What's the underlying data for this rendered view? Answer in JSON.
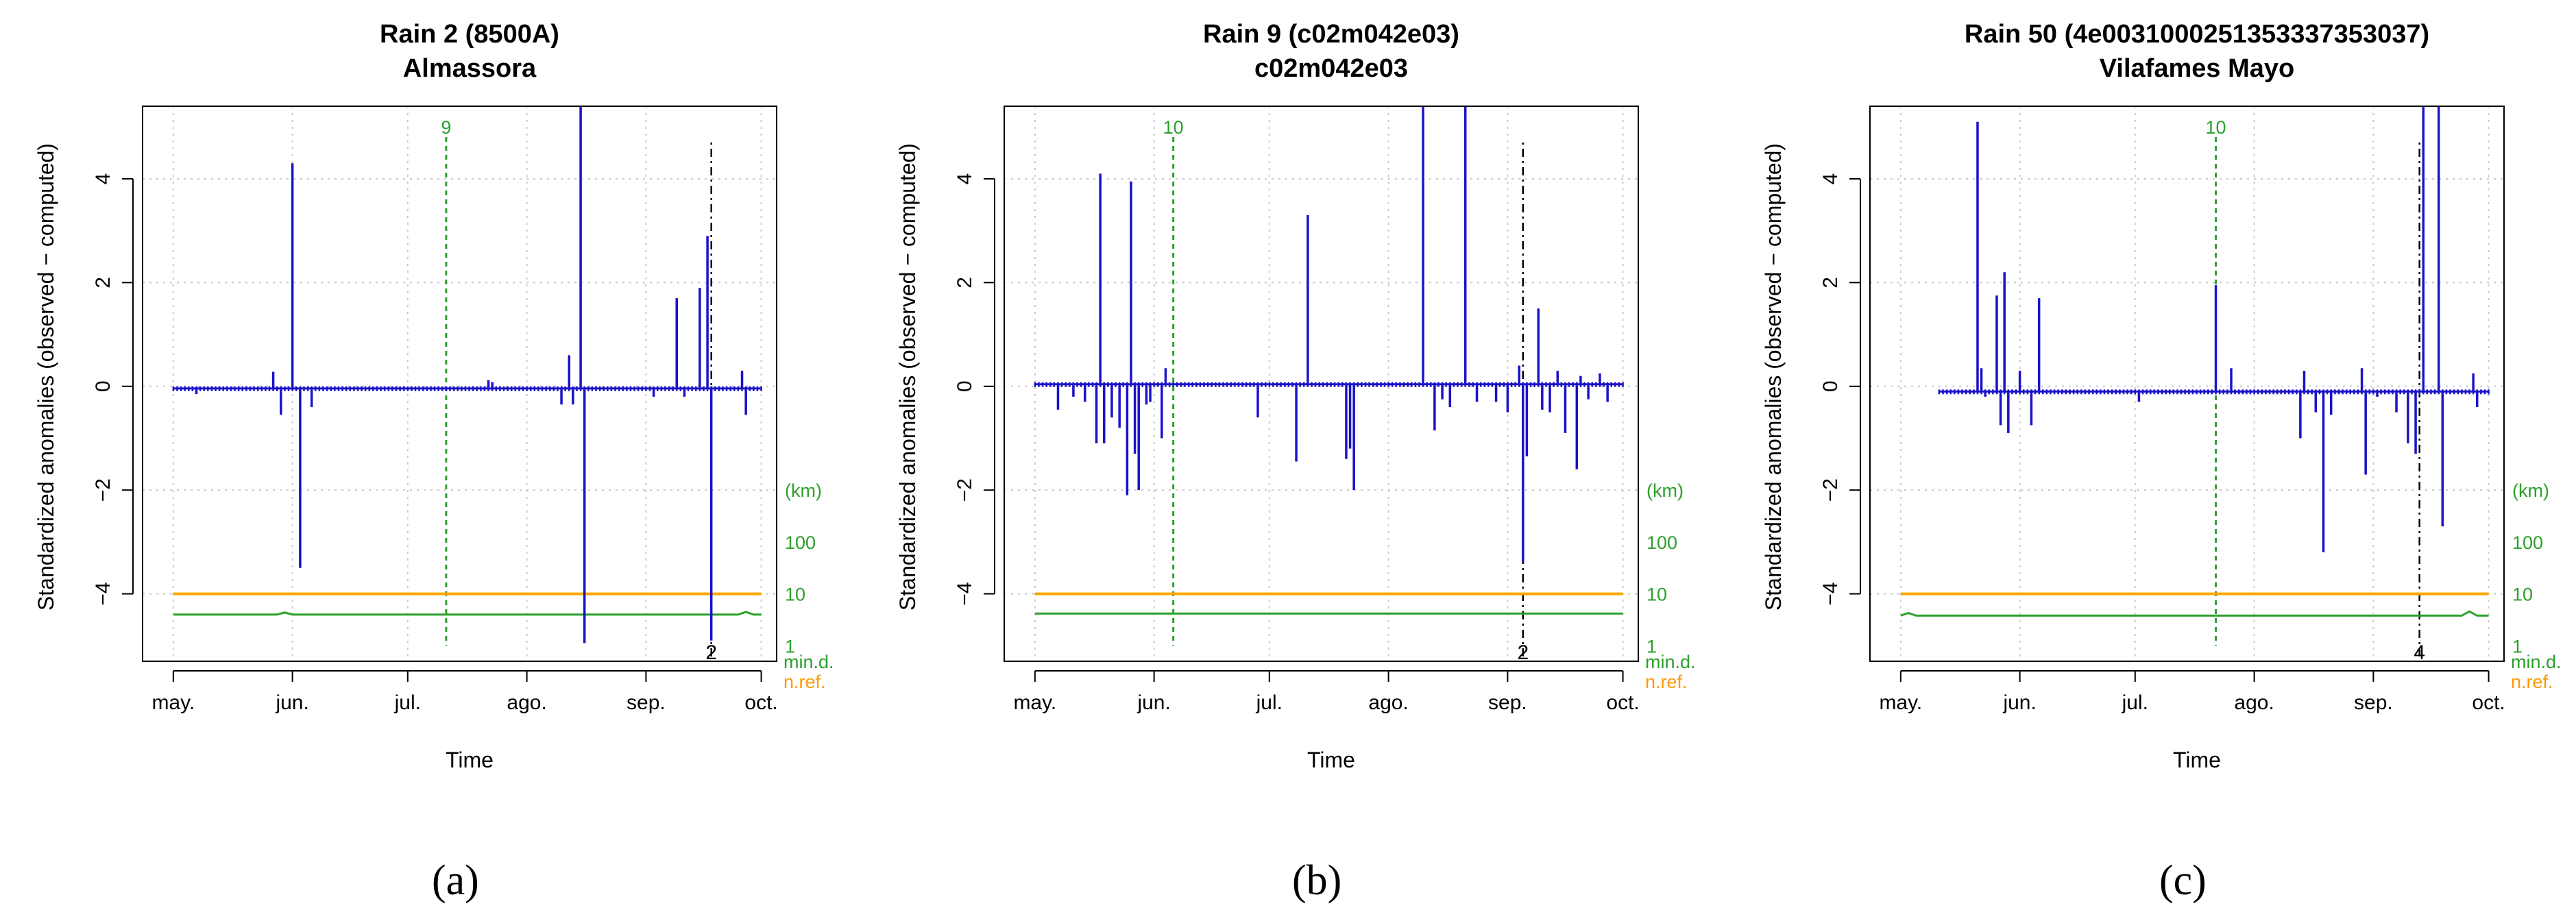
{
  "figure": {
    "captions": [
      "(a)",
      "(b)",
      "(c)"
    ]
  },
  "colors": {
    "anomaly": "#1a12c8",
    "nref": "#ffa500",
    "mind": "#2ca02c",
    "break": "#2ca02c",
    "outlier": "#000000",
    "grid": "#c8c8c8"
  },
  "chart_data": [
    {
      "type": "bar",
      "title": "Rain   2 (8500A)",
      "subtitle": "Almassora",
      "xlabel": "Time",
      "ylabel": "Standardized anomalies (observed − computed)",
      "x_unit": "days since 1 May",
      "xlim": [
        -8,
        157
      ],
      "ylim": [
        -5.3,
        5.4
      ],
      "x_ticks": [
        {
          "label": "may.",
          "x": 0
        },
        {
          "label": "jun.",
          "x": 31
        },
        {
          "label": "jul.",
          "x": 61
        },
        {
          "label": "ago.",
          "x": 92
        },
        {
          "label": "sep.",
          "x": 123
        },
        {
          "label": "oct.",
          "x": 153
        }
      ],
      "y_ticks": [
        -4,
        -2,
        0,
        2,
        4
      ],
      "right_axis": {
        "labels": [
          "(km)",
          "100",
          "10",
          "1"
        ],
        "label_y": [
          -2.0,
          -3.0,
          -4.0,
          -5.0
        ],
        "min_label": "min.d.",
        "nref_label": "n.ref."
      },
      "break_line": {
        "x": 71,
        "label": "9"
      },
      "outlier_line": {
        "x": 140,
        "label": "2"
      },
      "nref_level": -4.0,
      "mind_level": -4.4,
      "mind_bumps": [
        {
          "x": 29,
          "dy": 0.04
        },
        {
          "x": 149,
          "dy": 0.05
        }
      ],
      "baseline": -0.04,
      "baseline_x": [
        0,
        153
      ],
      "spikes": [
        {
          "x": 6,
          "y": -0.15
        },
        {
          "x": 26,
          "y": 0.28
        },
        {
          "x": 28,
          "y": -0.55
        },
        {
          "x": 31,
          "y": 4.3
        },
        {
          "x": 33,
          "y": -3.5
        },
        {
          "x": 36,
          "y": -0.4
        },
        {
          "x": 82,
          "y": 0.12
        },
        {
          "x": 83,
          "y": 0.08
        },
        {
          "x": 101,
          "y": -0.35
        },
        {
          "x": 103,
          "y": 0.6
        },
        {
          "x": 104,
          "y": -0.35
        },
        {
          "x": 106,
          "y": 5.5
        },
        {
          "x": 107,
          "y": -4.95
        },
        {
          "x": 125,
          "y": -0.2
        },
        {
          "x": 131,
          "y": 1.7
        },
        {
          "x": 133,
          "y": -0.2
        },
        {
          "x": 137,
          "y": 1.9
        },
        {
          "x": 139,
          "y": 2.9
        },
        {
          "x": 140,
          "y": -4.9
        },
        {
          "x": 148,
          "y": 0.3
        },
        {
          "x": 149,
          "y": -0.55
        }
      ]
    },
    {
      "type": "bar",
      "title": "Rain   9 (c02m042e03)",
      "subtitle": "c02m042e03",
      "xlabel": "Time",
      "ylabel": "Standardized anomalies (observed − computed)",
      "x_unit": "days since 1 May",
      "xlim": [
        -8,
        157
      ],
      "ylim": [
        -5.3,
        5.4
      ],
      "x_ticks": [
        {
          "label": "may.",
          "x": 0
        },
        {
          "label": "jun.",
          "x": 31
        },
        {
          "label": "jul.",
          "x": 61
        },
        {
          "label": "ago.",
          "x": 92
        },
        {
          "label": "sep.",
          "x": 123
        },
        {
          "label": "oct.",
          "x": 153
        }
      ],
      "y_ticks": [
        -4,
        -2,
        0,
        2,
        4
      ],
      "right_axis": {
        "labels": [
          "(km)",
          "100",
          "10",
          "1"
        ],
        "label_y": [
          -2.0,
          -3.0,
          -4.0,
          -5.0
        ],
        "min_label": "min.d.",
        "nref_label": "n.ref."
      },
      "break_line": {
        "x": 36,
        "label": "10"
      },
      "outlier_line": {
        "x": 127,
        "label": "2"
      },
      "nref_level": -4.0,
      "mind_level": -4.38,
      "mind_bumps": [],
      "baseline": 0.04,
      "baseline_x": [
        0,
        153
      ],
      "spikes": [
        {
          "x": 6,
          "y": -0.45
        },
        {
          "x": 10,
          "y": -0.2
        },
        {
          "x": 13,
          "y": -0.3
        },
        {
          "x": 16,
          "y": -1.1
        },
        {
          "x": 17,
          "y": 4.1
        },
        {
          "x": 18,
          "y": -1.1
        },
        {
          "x": 20,
          "y": -0.6
        },
        {
          "x": 22,
          "y": -0.8
        },
        {
          "x": 24,
          "y": -2.1
        },
        {
          "x": 25,
          "y": 3.95
        },
        {
          "x": 26,
          "y": -1.3
        },
        {
          "x": 27,
          "y": -2.0
        },
        {
          "x": 29,
          "y": -0.35
        },
        {
          "x": 30,
          "y": -0.3
        },
        {
          "x": 33,
          "y": -1.0
        },
        {
          "x": 34,
          "y": 0.35
        },
        {
          "x": 58,
          "y": -0.6
        },
        {
          "x": 68,
          "y": -1.45
        },
        {
          "x": 71,
          "y": 3.3
        },
        {
          "x": 81,
          "y": -1.4
        },
        {
          "x": 82,
          "y": -1.2
        },
        {
          "x": 83,
          "y": -2.0
        },
        {
          "x": 101,
          "y": 5.5
        },
        {
          "x": 104,
          "y": -0.85
        },
        {
          "x": 106,
          "y": -0.25
        },
        {
          "x": 108,
          "y": -0.4
        },
        {
          "x": 112,
          "y": 5.5
        },
        {
          "x": 115,
          "y": -0.3
        },
        {
          "x": 120,
          "y": -0.3
        },
        {
          "x": 123,
          "y": -0.5
        },
        {
          "x": 126,
          "y": 0.4
        },
        {
          "x": 127,
          "y": -3.4
        },
        {
          "x": 128,
          "y": -1.35
        },
        {
          "x": 131,
          "y": 1.5
        },
        {
          "x": 132,
          "y": -0.45
        },
        {
          "x": 134,
          "y": -0.5
        },
        {
          "x": 136,
          "y": 0.3
        },
        {
          "x": 138,
          "y": -0.9
        },
        {
          "x": 141,
          "y": -1.6
        },
        {
          "x": 142,
          "y": 0.2
        },
        {
          "x": 144,
          "y": -0.25
        },
        {
          "x": 147,
          "y": 0.25
        },
        {
          "x": 149,
          "y": -0.3
        }
      ]
    },
    {
      "type": "bar",
      "title": "Rain   50 (4e0031000251353337353037)",
      "subtitle": "Vilafames Mayo",
      "xlabel": "Time",
      "ylabel": "Standardized anomalies (observed − computed)",
      "x_unit": "days since 1 May",
      "xlim": [
        -8,
        157
      ],
      "ylim": [
        -5.3,
        5.4
      ],
      "x_ticks": [
        {
          "label": "may.",
          "x": 0
        },
        {
          "label": "jun.",
          "x": 31
        },
        {
          "label": "jul.",
          "x": 61
        },
        {
          "label": "ago.",
          "x": 92
        },
        {
          "label": "sep.",
          "x": 123
        },
        {
          "label": "oct.",
          "x": 153
        }
      ],
      "y_ticks": [
        -4,
        -2,
        0,
        2,
        4
      ],
      "right_axis": {
        "labels": [
          "(km)",
          "100",
          "10",
          "1"
        ],
        "label_y": [
          -2.0,
          -3.0,
          -4.0,
          -5.0
        ],
        "min_label": "min.d.",
        "nref_label": "n.ref."
      },
      "break_line": {
        "x": 82,
        "label": "10"
      },
      "outlier_line": {
        "x": 135,
        "label": "4"
      },
      "nref_level": -4.0,
      "mind_level": -4.42,
      "mind_bumps": [
        {
          "x": 2,
          "dy": 0.05
        },
        {
          "x": 148,
          "dy": 0.08
        }
      ],
      "baseline": -0.1,
      "baseline_x": [
        10,
        153
      ],
      "spikes": [
        {
          "x": 20,
          "y": 5.1
        },
        {
          "x": 21,
          "y": 0.35
        },
        {
          "x": 22,
          "y": -0.2
        },
        {
          "x": 25,
          "y": 1.75
        },
        {
          "x": 26,
          "y": -0.75
        },
        {
          "x": 27,
          "y": 2.2
        },
        {
          "x": 28,
          "y": -0.9
        },
        {
          "x": 31,
          "y": 0.3
        },
        {
          "x": 34,
          "y": -0.75
        },
        {
          "x": 36,
          "y": 1.7
        },
        {
          "x": 62,
          "y": -0.3
        },
        {
          "x": 82,
          "y": 1.95
        },
        {
          "x": 86,
          "y": 0.35
        },
        {
          "x": 104,
          "y": -1.0
        },
        {
          "x": 105,
          "y": 0.3
        },
        {
          "x": 108,
          "y": -0.5
        },
        {
          "x": 110,
          "y": -3.2
        },
        {
          "x": 112,
          "y": -0.55
        },
        {
          "x": 120,
          "y": 0.35
        },
        {
          "x": 121,
          "y": -1.7
        },
        {
          "x": 124,
          "y": -0.2
        },
        {
          "x": 129,
          "y": -0.5
        },
        {
          "x": 132,
          "y": -1.1
        },
        {
          "x": 134,
          "y": -1.3
        },
        {
          "x": 136,
          "y": 5.5
        },
        {
          "x": 140,
          "y": 5.5
        },
        {
          "x": 141,
          "y": -2.7
        },
        {
          "x": 149,
          "y": 0.25
        },
        {
          "x": 150,
          "y": -0.4
        }
      ]
    }
  ]
}
